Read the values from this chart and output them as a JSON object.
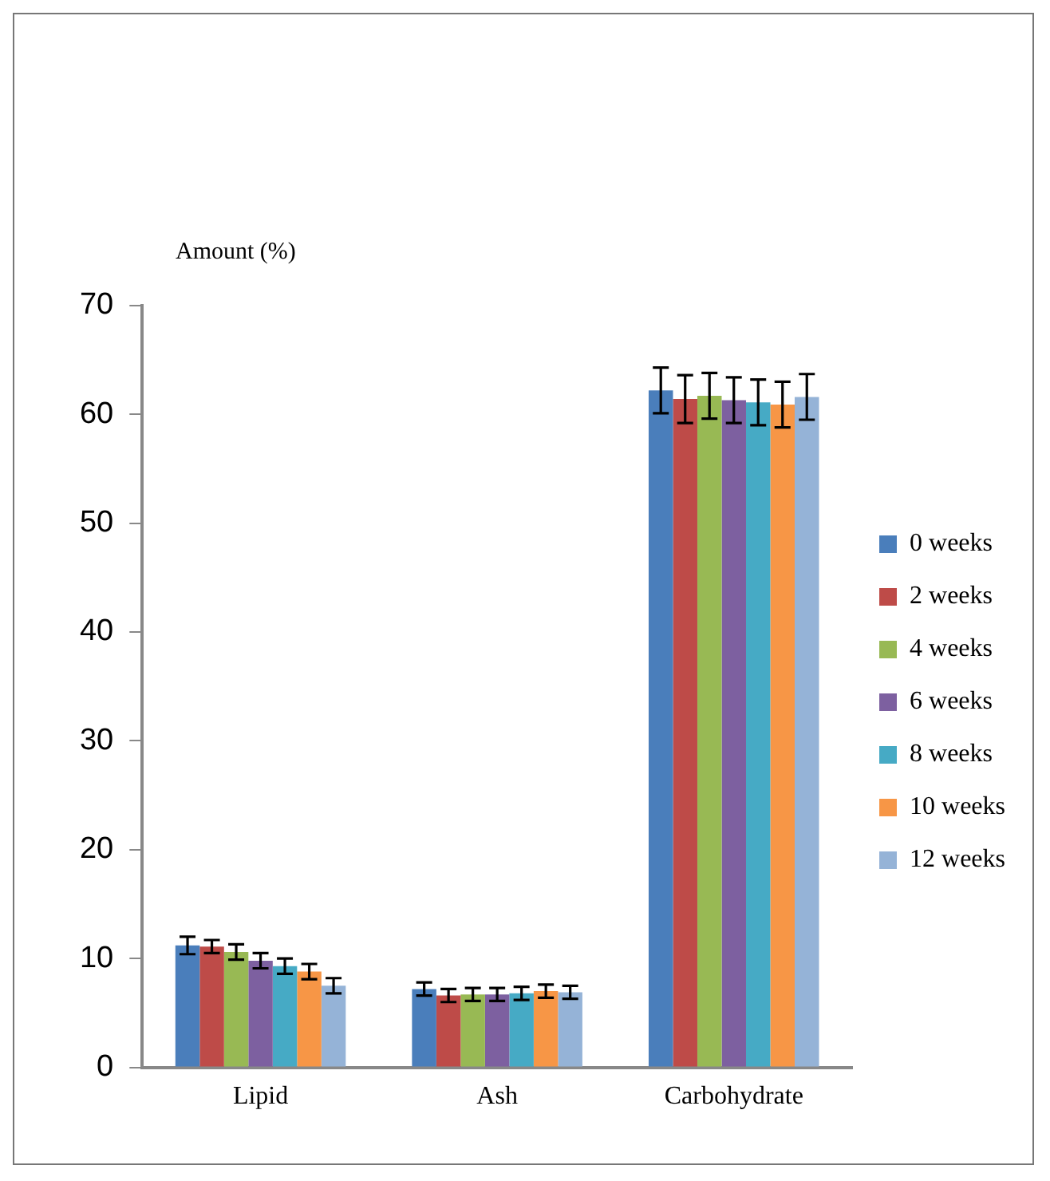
{
  "chart_data": {
    "type": "bar",
    "ylabel": "Amount (%)",
    "categories": [
      "Lipid",
      "Ash",
      "Carbohydrate"
    ],
    "series": [
      {
        "name": "0 weeks",
        "color": "#4a7ebb",
        "values": [
          11.2,
          7.2,
          62.2
        ],
        "errors": [
          0.8,
          0.6,
          2.1
        ]
      },
      {
        "name": "2 weeks",
        "color": "#be4b48",
        "values": [
          11.1,
          6.6,
          61.4
        ],
        "errors": [
          0.6,
          0.6,
          2.2
        ]
      },
      {
        "name": "4 weeks",
        "color": "#98b954",
        "values": [
          10.6,
          6.7,
          61.7
        ],
        "errors": [
          0.7,
          0.6,
          2.1
        ]
      },
      {
        "name": "6 weeks",
        "color": "#7d60a0",
        "values": [
          9.8,
          6.7,
          61.3
        ],
        "errors": [
          0.7,
          0.6,
          2.1
        ]
      },
      {
        "name": "8 weeks",
        "color": "#46aac5",
        "values": [
          9.3,
          6.8,
          61.1
        ],
        "errors": [
          0.7,
          0.6,
          2.1
        ]
      },
      {
        "name": "10 weeks",
        "color": "#f79646",
        "values": [
          8.8,
          7.0,
          60.9
        ],
        "errors": [
          0.7,
          0.6,
          2.1
        ]
      },
      {
        "name": "12 weeks",
        "color": "#95b3d7",
        "values": [
          7.5,
          6.9,
          61.6
        ],
        "errors": [
          0.7,
          0.6,
          2.1
        ]
      }
    ],
    "ylim": [
      0,
      70
    ],
    "yticks": [
      0,
      10,
      20,
      30,
      40,
      50,
      60,
      70
    ],
    "grid": false,
    "legend": "right"
  }
}
